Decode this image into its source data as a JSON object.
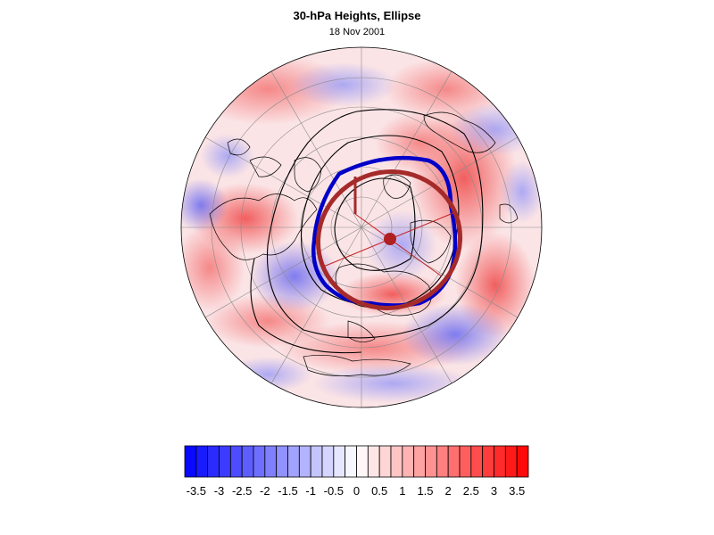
{
  "title": "30-hPa Heights, Ellipse",
  "subtitle": "18 Nov 2001",
  "colors": {
    "negative": "#0000ff",
    "neutral": "#ffffff",
    "positive": "#ff0000",
    "ellipse": "#a52a2a",
    "vortex_edge": "#0000c8",
    "contour": "#000000"
  },
  "colorbar": {
    "labels": [
      "-3.5",
      "-3",
      "-2.5",
      "-2",
      "-1.5",
      "-1",
      "-0.5",
      "0",
      "0.5",
      "1",
      "1.5",
      "2",
      "2.5",
      "3",
      "3.5"
    ],
    "min": -3.75,
    "max": 3.75,
    "step": 0.25
  }
}
